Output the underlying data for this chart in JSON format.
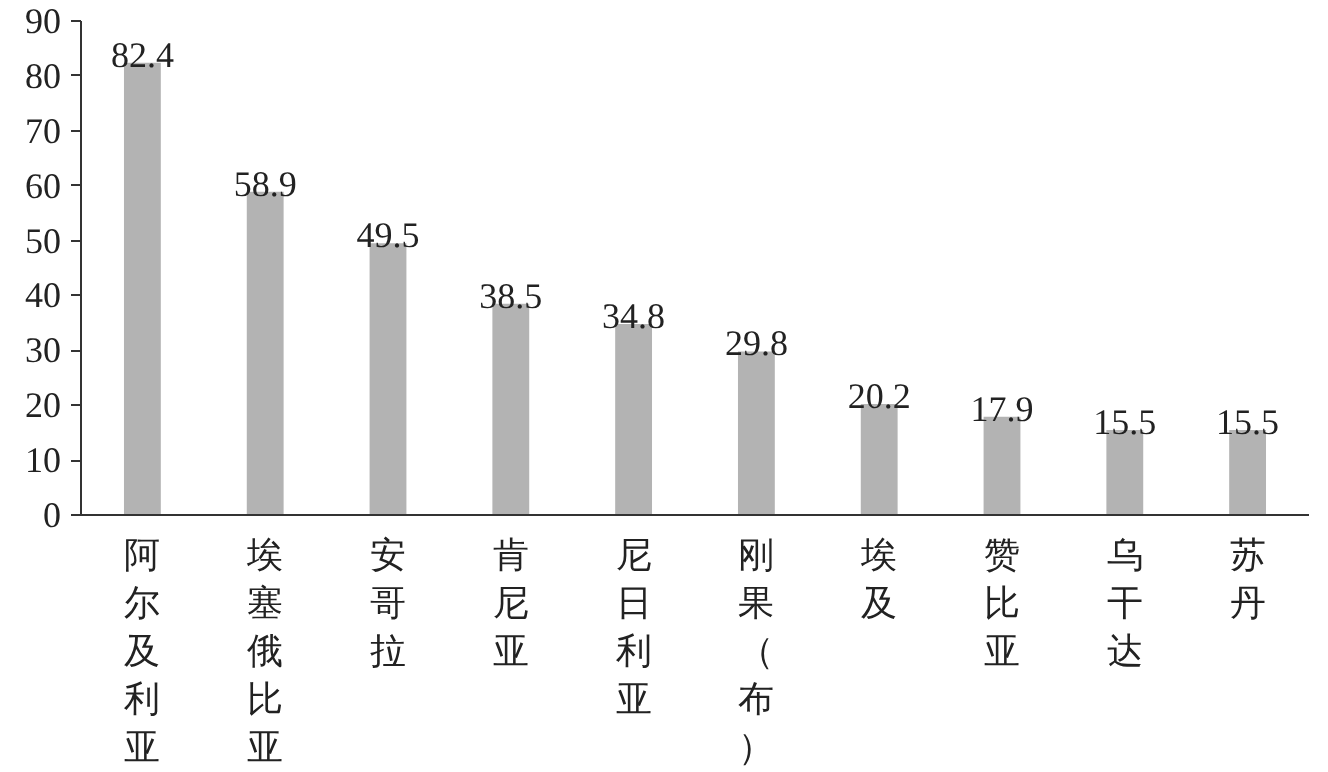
{
  "chart_data": {
    "type": "bar",
    "categories": [
      "阿尔及利亚",
      "埃塞俄比亚",
      "安哥拉",
      "肯尼亚",
      "尼日利亚",
      "刚果（布）",
      "埃及",
      "赞比亚",
      "乌干达",
      "苏丹"
    ],
    "values": [
      82.4,
      58.9,
      49.5,
      38.5,
      34.8,
      29.8,
      20.2,
      17.9,
      15.5,
      15.5
    ],
    "color": "#b3b3b3",
    "data_labels": true,
    "ylim": [
      0,
      90
    ],
    "yticks": [
      0,
      10,
      20,
      30,
      40,
      50,
      60,
      70,
      80,
      90
    ]
  }
}
